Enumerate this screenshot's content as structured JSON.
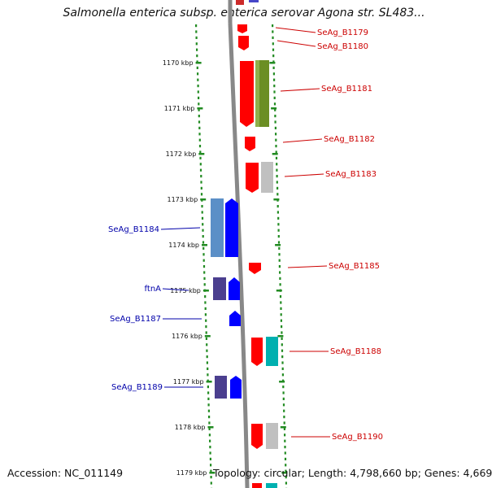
{
  "title": "Salmonella enterica subsp. enterica serovar Agona str. SL483...",
  "footer": {
    "accession": "Accession: NC_011149",
    "stats": "Topology: circular; Length: 4,798,660 bp; Genes: 4,669"
  },
  "colors": {
    "forward_label": "#0000aa",
    "reverse_label": "#cc0000",
    "tick": "#228b22",
    "backbone": "#888888"
  },
  "axis": {
    "unit": "kbp",
    "ticks": [
      "1170 kbp",
      "1171 kbp",
      "1172 kbp",
      "1173 kbp",
      "1174 kbp",
      "1175 kbp",
      "1176 kbp",
      "1177 kbp",
      "1178 kbp",
      "1179 kbp"
    ]
  },
  "genes": [
    {
      "label": "SeAg_B1179",
      "strand": "reverse",
      "color": "#ff0000"
    },
    {
      "label": "SeAg_B1180",
      "strand": "reverse",
      "color": "#ff0000"
    },
    {
      "label": "SeAg_B1181",
      "strand": "reverse",
      "color": "#ff0000"
    },
    {
      "label": "SeAg_B1182",
      "strand": "reverse",
      "color": "#ff0000"
    },
    {
      "label": "SeAg_B1183",
      "strand": "reverse",
      "color": "#ff0000"
    },
    {
      "label": "SeAg_B1184",
      "strand": "forward",
      "color": "#0000ff"
    },
    {
      "label": "SeAg_B1185",
      "strand": "reverse",
      "color": "#ff0000"
    },
    {
      "label": "ftnA",
      "strand": "forward",
      "color": "#0000ff"
    },
    {
      "label": "SeAg_B1187",
      "strand": "forward",
      "color": "#0000ff"
    },
    {
      "label": "SeAg_B1188",
      "strand": "reverse",
      "color": "#ff0000"
    },
    {
      "label": "SeAg_B1189",
      "strand": "forward",
      "color": "#0000ff"
    },
    {
      "label": "SeAg_B1190",
      "strand": "reverse",
      "color": "#ff0000"
    }
  ]
}
